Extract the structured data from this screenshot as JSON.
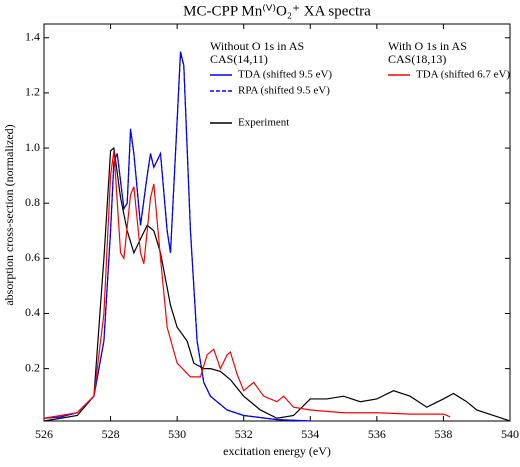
{
  "chart_data": {
    "type": "line",
    "title": "MC-CPP Mn⁽ⱽ⁾O₂⁺ XA spectra",
    "xlabel": "excitation energy (eV)",
    "ylabel": "absorption cross-section (normalized)",
    "legend_groups": [
      [
        "Without O 1s in AS",
        "CAS(14,11)"
      ],
      [
        "With O 1s in AS",
        "CAS(18,13)"
      ]
    ],
    "xlim": [
      526,
      540
    ],
    "xticks": [
      526,
      528,
      530,
      532,
      534,
      536,
      538,
      540
    ],
    "ylim": [
      0.01,
      1.45
    ],
    "yticks": [
      0.2,
      0.4,
      0.6,
      0.8,
      {
        "value": 1,
        "label": "1.0"
      },
      1.2,
      1.4
    ],
    "series": [
      {
        "name": "TDA (shifted 9.5 eV)",
        "color": "#0000ff",
        "dash": false,
        "x": [
          526,
          526.5,
          527,
          527.5,
          527.8,
          528,
          528.1,
          528.2,
          528.4,
          528.5,
          528.6,
          528.7,
          528.9,
          529.1,
          529.2,
          529.3,
          529.5,
          529.7,
          529.8,
          530,
          530.1,
          530.2,
          530.4,
          530.6,
          530.8,
          531,
          531.5,
          532,
          533,
          534
        ],
        "values": [
          0.02,
          0.025,
          0.04,
          0.1,
          0.3,
          0.7,
          0.95,
          0.98,
          0.78,
          0.8,
          1.07,
          0.98,
          0.72,
          0.9,
          0.98,
          0.93,
          0.98,
          0.7,
          0.62,
          1.1,
          1.35,
          1.3,
          0.7,
          0.3,
          0.15,
          0.1,
          0.05,
          0.03,
          0.015,
          0.01
        ]
      },
      {
        "name": "RPA (shifted 9.5 eV)",
        "color": "#0000ff",
        "dash": true,
        "x": [
          526,
          526.5,
          527,
          527.5,
          527.8,
          528,
          528.1,
          528.2,
          528.4,
          528.5,
          528.6,
          528.7,
          528.9,
          529.1,
          529.2,
          529.3,
          529.5,
          529.7,
          529.8,
          530,
          530.1,
          530.2,
          530.4,
          530.6,
          530.8,
          531,
          531.5,
          532,
          533,
          534
        ],
        "values": [
          0.02,
          0.025,
          0.04,
          0.1,
          0.3,
          0.7,
          0.95,
          0.98,
          0.78,
          0.8,
          1.06,
          0.98,
          0.72,
          0.9,
          0.98,
          0.93,
          0.98,
          0.7,
          0.62,
          1.1,
          1.34,
          1.3,
          0.7,
          0.3,
          0.15,
          0.1,
          0.05,
          0.03,
          0.015,
          0.01
        ]
      },
      {
        "name": "Experiment",
        "color": "#000000",
        "dash": false,
        "x": [
          526,
          526.5,
          527,
          527.5,
          527.8,
          528,
          528.1,
          528.3,
          528.5,
          528.7,
          528.9,
          529.1,
          529.3,
          529.5,
          529.8,
          530,
          530.3,
          530.5,
          530.8,
          531,
          531.3,
          531.6,
          532,
          532.5,
          533,
          533.5,
          534,
          534.5,
          535,
          535.5,
          536,
          536.5,
          537,
          537.5,
          538,
          538.3,
          538.7,
          539,
          539.5,
          540
        ],
        "values": [
          0.01,
          0.02,
          0.03,
          0.1,
          0.6,
          0.99,
          1.0,
          0.82,
          0.7,
          0.62,
          0.67,
          0.72,
          0.7,
          0.62,
          0.43,
          0.35,
          0.3,
          0.22,
          0.2,
          0.2,
          0.19,
          0.16,
          0.1,
          0.05,
          0.02,
          0.03,
          0.09,
          0.09,
          0.1,
          0.08,
          0.09,
          0.12,
          0.1,
          0.06,
          0.09,
          0.11,
          0.08,
          0.05,
          0.03,
          0.01
        ]
      },
      {
        "name": "TDA (shifted 6.7 eV)",
        "color": "#ff0000",
        "dash": false,
        "x": [
          526,
          527,
          527.5,
          527.8,
          528,
          528.1,
          528.3,
          528.4,
          528.6,
          528.7,
          528.9,
          529,
          529.2,
          529.3,
          529.5,
          529.7,
          530,
          530.4,
          530.7,
          530.9,
          531.1,
          531.3,
          531.5,
          531.6,
          531.8,
          532,
          532.3,
          532.6,
          533,
          533.2,
          533.5,
          534,
          535,
          536,
          537,
          538,
          538.2
        ],
        "values": [
          0.02,
          0.04,
          0.1,
          0.4,
          0.9,
          0.99,
          0.62,
          0.6,
          0.83,
          0.86,
          0.62,
          0.58,
          0.82,
          0.87,
          0.6,
          0.35,
          0.22,
          0.17,
          0.17,
          0.25,
          0.27,
          0.2,
          0.25,
          0.26,
          0.18,
          0.12,
          0.15,
          0.1,
          0.08,
          0.1,
          0.06,
          0.05,
          0.04,
          0.04,
          0.035,
          0.035,
          0.025
        ]
      }
    ]
  }
}
